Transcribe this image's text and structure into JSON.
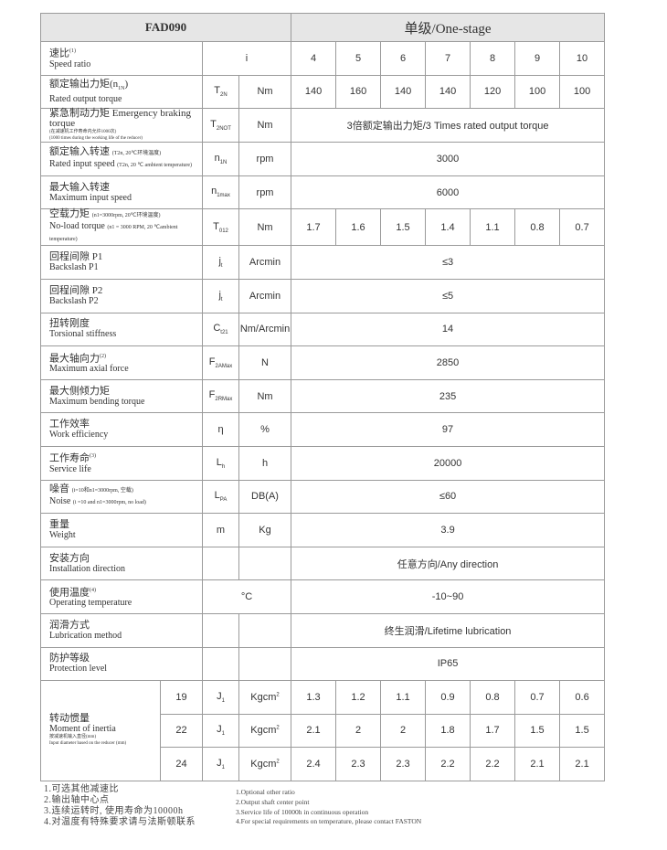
{
  "header": {
    "model": "FAD090",
    "stage": "单级/One-stage"
  },
  "rows": {
    "speed_ratio": {
      "cn": "速比",
      "note": "(1)",
      "en": "Speed ratio",
      "symbol": "i",
      "values": [
        "4",
        "5",
        "6",
        "7",
        "8",
        "9",
        "10"
      ]
    },
    "rated_torque": {
      "cn": "额定输出力矩(n",
      "cn_sub": "1N",
      "cn_end": ")",
      "en": "Rated output torque",
      "symbol": "T",
      "symbol_sub": "2N",
      "unit": "Nm",
      "values": [
        "140",
        "160",
        "140",
        "140",
        "120",
        "100",
        "100"
      ]
    },
    "emergency": {
      "cn": "紧急制动力矩 Emergency braking torque",
      "note1": "(在减速机工作寿命内允许1000次)",
      "note2": "(1000 times during the working life of the reducer)",
      "symbol": "T",
      "symbol_sub": "2NOT",
      "unit": "Nm",
      "value": "3倍额定输出力矩/3 Times rated output torque"
    },
    "rated_input": {
      "cn": "额定输入转速",
      "cn_note": "(T2n, 20℃环境温度)",
      "en": "Rated input speed",
      "en_note": "(T2n, 20 ℃ ambient temperature)",
      "symbol": "n",
      "symbol_sub": "1N",
      "unit": "rpm",
      "value": "3000"
    },
    "max_input": {
      "cn": "最大输入转速",
      "en": "Maximum input speed",
      "symbol": "n",
      "symbol_sub": "1max",
      "unit": "rpm",
      "value": "6000"
    },
    "no_load": {
      "cn": "空载力矩",
      "cn_note": "(n1=3000rpm, 20℃环境温度)",
      "en": "No-load torque",
      "en_note": "(n1 = 3000 RPM, 20 ℃ambient temperature)",
      "symbol": "T",
      "symbol_sub": "012",
      "unit": "Nm",
      "values": [
        "1.7",
        "1.6",
        "1.5",
        "1.4",
        "1.1",
        "0.8",
        "0.7"
      ]
    },
    "backlash_p1": {
      "cn": "回程间隙  P1",
      "en": "Backslash   P1",
      "symbol": "j",
      "symbol_sub": "t",
      "unit": "Arcmin",
      "value": "≤3"
    },
    "backlash_p2": {
      "cn": "回程间隙  P2",
      "en": "Backslash   P2",
      "symbol": "j",
      "symbol_sub": "t",
      "unit": "Arcmin",
      "value": "≤5"
    },
    "stiffness": {
      "cn": "扭转刚度",
      "en": "Torsional stiffness",
      "symbol": "C",
      "symbol_sub": "t21",
      "unit": "Nm/Arcmin",
      "value": "14"
    },
    "axial": {
      "cn": "最大轴向力",
      "note": "(2)",
      "en": "Maximum axial force",
      "symbol": "F",
      "symbol_sub": "2AMax",
      "unit": "N",
      "value": "2850"
    },
    "bending": {
      "cn": "最大侧倾力矩",
      "en": "Maximum bending torque",
      "symbol": "F",
      "symbol_sub": "2RMax",
      "unit": "Nm",
      "value": "235"
    },
    "efficiency": {
      "cn": "工作效率",
      "en": "Work efficiency",
      "symbol": "η",
      "unit": "%",
      "value": "97"
    },
    "life": {
      "cn": "工作寿命",
      "note": "(3)",
      "en": "Service life",
      "symbol": "L",
      "symbol_sub": "h",
      "unit": "h",
      "value": "20000"
    },
    "noise": {
      "cn": "噪音",
      "cn_note": "(i=10和n1=3000rpm, 空载)",
      "en": "Noise",
      "en_note": "(i =10 and n1=3000rpm, no load)",
      "symbol": "L",
      "symbol_sub": "PA",
      "unit": "DB(A)",
      "value": "≤60"
    },
    "weight": {
      "cn": "重量",
      "en": "Weight",
      "symbol": "m",
      "unit": "Kg",
      "value": "3.9"
    },
    "installation": {
      "cn": "安装方向",
      "en": "Installation direction",
      "value": "任意方向/Any direction"
    },
    "temperature": {
      "cn": "使用温度",
      "note": "(4)",
      "en": "Operating temperature",
      "unit": "°C",
      "value": "-10~90"
    },
    "lubrication": {
      "cn": "润滑方式",
      "en": "Lubrication method",
      "value": "终生润滑/Lifetime lubrication"
    },
    "protection": {
      "cn": "防护等级",
      "en": "Protection level",
      "value": "IP65"
    },
    "inertia": {
      "cn": "转动惯量",
      "en": "Moment of inertia",
      "note1": "按减速机输入直径(mm)",
      "note2": "Input diameter based on the reducer (mm)",
      "symbol": "J",
      "symbol_sub": "1",
      "unit": "Kgcm",
      "unit_sup": "2",
      "rows": [
        {
          "diameter": "19",
          "values": [
            "1.3",
            "1.2",
            "1.1",
            "0.9",
            "0.8",
            "0.7",
            "0.6"
          ]
        },
        {
          "diameter": "22",
          "values": [
            "2.1",
            "2",
            "2",
            "1.8",
            "1.7",
            "1.5",
            "1.5"
          ]
        },
        {
          "diameter": "24",
          "values": [
            "2.4",
            "2.3",
            "2.3",
            "2.2",
            "2.2",
            "2.1",
            "2.1"
          ]
        }
      ]
    }
  },
  "notes_cn": [
    "1.可选其他减速比",
    "2.输出轴中心点",
    "3.连续运转时, 使用寿命为10000h",
    "4.对温度有特殊要求请与法斯顿联系"
  ],
  "notes_en": [
    "1.Optional other ratio",
    "2.Output shaft center point",
    "3.Service life of 10000h in continuous operation",
    "4.For special requirements on temperature, please contact FASTON"
  ]
}
